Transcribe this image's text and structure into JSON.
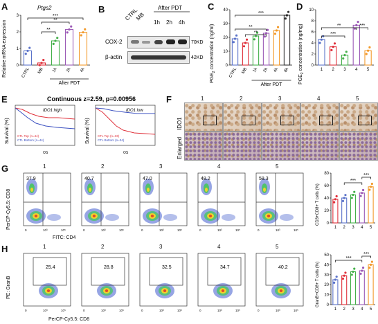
{
  "panels": {
    "A": {
      "letter": "A",
      "ylabel": "Relative mRNA expression",
      "gene": "Ptgs2",
      "categories": [
        "CTRL",
        "MB",
        "1h",
        "2h",
        "4h"
      ],
      "group": "After PDT",
      "yticks": [
        "0",
        "1",
        "2",
        "3"
      ],
      "sig": [
        "**",
        "**",
        "***"
      ]
    },
    "B": {
      "letter": "B",
      "cols": [
        "CTRL",
        "MB",
        "1h",
        "2h",
        "4h"
      ],
      "group": "After PDT",
      "rows": [
        "COX-2",
        "β-actin"
      ],
      "sizes": [
        "70KD",
        "42KD"
      ]
    },
    "C": {
      "letter": "C",
      "ylabel": "PGE",
      "ylabel_sub": "2",
      "ylabel_rest": " concentration (ng/ml)",
      "categories": [
        "CTRL",
        "MB",
        "1h",
        "2h",
        "4h",
        "8h"
      ],
      "group": "After PDT",
      "yticks": [
        "0",
        "10",
        "20",
        "30",
        "40"
      ],
      "sig": [
        "**",
        "**",
        "***"
      ]
    },
    "D": {
      "letter": "D",
      "ylabel": "PGE",
      "ylabel_sub": "2",
      "ylabel_rest": " concentration (ng/mg)",
      "categories": [
        "1",
        "2",
        "3",
        "4",
        "5"
      ],
      "yticks": [
        "0",
        "2",
        "4",
        "6",
        "8",
        "10"
      ],
      "sig": [
        "**",
        "***",
        "***"
      ]
    },
    "E": {
      "letter": "E",
      "title": "Continuous z=2.59, p=0.00956",
      "left": {
        "label": "IDO1 high",
        "ylabel": "Survival (%)",
        "xlabel": "OS",
        "legend": [
          "CTL Top (n=44)",
          "CTL Bottom (n=44)"
        ]
      },
      "right": {
        "label": "IDO1 low",
        "ylabel": "Survival (%)",
        "xlabel": "OS",
        "legend": [
          "CTL Top (n=33)",
          "CTL Bottom (n=34)"
        ]
      }
    },
    "F": {
      "letter": "F",
      "cols": [
        "1",
        "2",
        "3",
        "4",
        "5"
      ],
      "rows": [
        "IDO1",
        "Enlarged"
      ]
    },
    "G": {
      "letter": "G",
      "cols": [
        "1",
        "2",
        "3",
        "4",
        "5"
      ],
      "values": [
        "37.9",
        "40.7",
        "47.0",
        "48.2",
        "58.3"
      ],
      "ylabel": "PerCP-Cy5.5: CD8",
      "xlabel": "FITC: CD4",
      "bar_ylabel": "CD3+CD8+ T cells (%)",
      "bar_categories": [
        "1",
        "2",
        "3",
        "4",
        "5"
      ],
      "yticks": [
        "0",
        "20",
        "40",
        "60",
        "80"
      ],
      "sig": [
        "***",
        "***"
      ]
    },
    "H": {
      "letter": "H",
      "cols": [
        "1",
        "2",
        "3",
        "4",
        "5"
      ],
      "values": [
        "25.4",
        "28.8",
        "32.5",
        "34.7",
        "40.2"
      ],
      "ylabel": "PE: GranB",
      "xlabel": "PerCP-Cy5.5: CD8",
      "bar_ylabel": "GranB+CD8+ T cells (%)",
      "bar_categories": [
        "1",
        "2",
        "3",
        "4",
        "5"
      ],
      "yticks": [
        "0",
        "10",
        "20",
        "30",
        "40",
        "50"
      ],
      "sig": [
        "***",
        "***"
      ]
    }
  },
  "chart_data": [
    {
      "type": "bar",
      "id": "A",
      "categories": [
        "CTRL",
        "MB",
        "1h",
        "2h",
        "4h"
      ],
      "values": [
        1.0,
        0.15,
        1.7,
        2.5,
        2.3
      ],
      "ylim": [
        0,
        3.5
      ],
      "colors": [
        "#5b73c9",
        "#e0303a",
        "#44b04a",
        "#9b59b6",
        "#f39a2b"
      ]
    },
    {
      "type": "bar",
      "id": "C",
      "categories": [
        "CTRL",
        "MB",
        "1h",
        "2h",
        "4h",
        "8h"
      ],
      "values": [
        19,
        16,
        21,
        23,
        25,
        36
      ],
      "ylim": [
        0,
        40
      ],
      "colors": [
        "#5b73c9",
        "#e0303a",
        "#44b04a",
        "#9b59b6",
        "#f39a2b",
        "#333333"
      ]
    },
    {
      "type": "bar",
      "id": "D",
      "categories": [
        "1",
        "2",
        "3",
        "4",
        "5"
      ],
      "values": [
        4.6,
        3.3,
        1.8,
        7.2,
        2.6
      ],
      "ylim": [
        0,
        10
      ],
      "colors": [
        "#5b73c9",
        "#e0303a",
        "#44b04a",
        "#9b59b6",
        "#f39a2b"
      ]
    },
    {
      "type": "bar",
      "id": "G",
      "categories": [
        "1",
        "2",
        "3",
        "4",
        "5"
      ],
      "values": [
        38,
        40,
        45,
        48,
        58
      ],
      "ylim": [
        0,
        80
      ],
      "colors": [
        "#e0303a",
        "#5b73c9",
        "#44b04a",
        "#9b59b6",
        "#f39a2b"
      ]
    },
    {
      "type": "bar",
      "id": "H",
      "categories": [
        "1",
        "2",
        "3",
        "4",
        "5"
      ],
      "values": [
        25,
        29,
        33,
        34,
        40
      ],
      "ylim": [
        0,
        50
      ],
      "colors": [
        "#5b73c9",
        "#e0303a",
        "#44b04a",
        "#9b59b6",
        "#f39a2b"
      ]
    }
  ]
}
